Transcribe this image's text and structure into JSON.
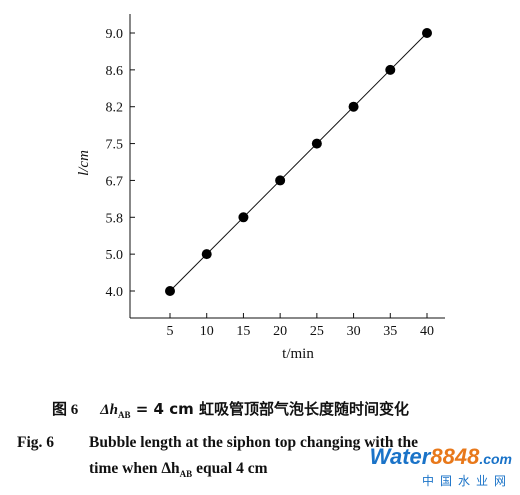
{
  "chart_data": {
    "type": "scatter",
    "xlabel": "t/min",
    "ylabel": "l/cm",
    "x_ticks": [
      "5",
      "10",
      "15",
      "20",
      "25",
      "30",
      "35",
      "40"
    ],
    "y_ticks": [
      "4.0",
      "5.0",
      "5.8",
      "6.7",
      "7.5",
      "8.2",
      "8.6",
      "9.0"
    ],
    "x_ticks_values": [
      5,
      10,
      15,
      20,
      25,
      30,
      35,
      40
    ],
    "y_ticks_values": [
      4.0,
      5.0,
      5.8,
      6.7,
      7.5,
      8.2,
      8.6,
      9.0
    ],
    "series": [
      {
        "x": [
          5,
          10,
          15,
          20,
          25,
          30,
          35,
          40
        ],
        "y": [
          4.0,
          5.0,
          5.8,
          6.7,
          7.5,
          8.2,
          8.6,
          9.0
        ]
      }
    ],
    "trend_line": true,
    "grid": false
  },
  "caption": {
    "cn_fig": "图 6",
    "cn_symbol": "Δh",
    "cn_sub": "AB",
    "cn_rest": " = 4 cm 虹吸管顶部气泡长度随时间变化",
    "en_fig": "Fig. 6",
    "en_line1": "Bubble length at the siphon top changing with the",
    "en_line2_pre": "time when Δh",
    "en_line2_sub": "AB",
    "en_line2_post": " equal 4 cm"
  },
  "watermark": {
    "top_a": "Water",
    "top_b": "8848",
    "top_c": ".com",
    "bottom": "中国水业网"
  }
}
